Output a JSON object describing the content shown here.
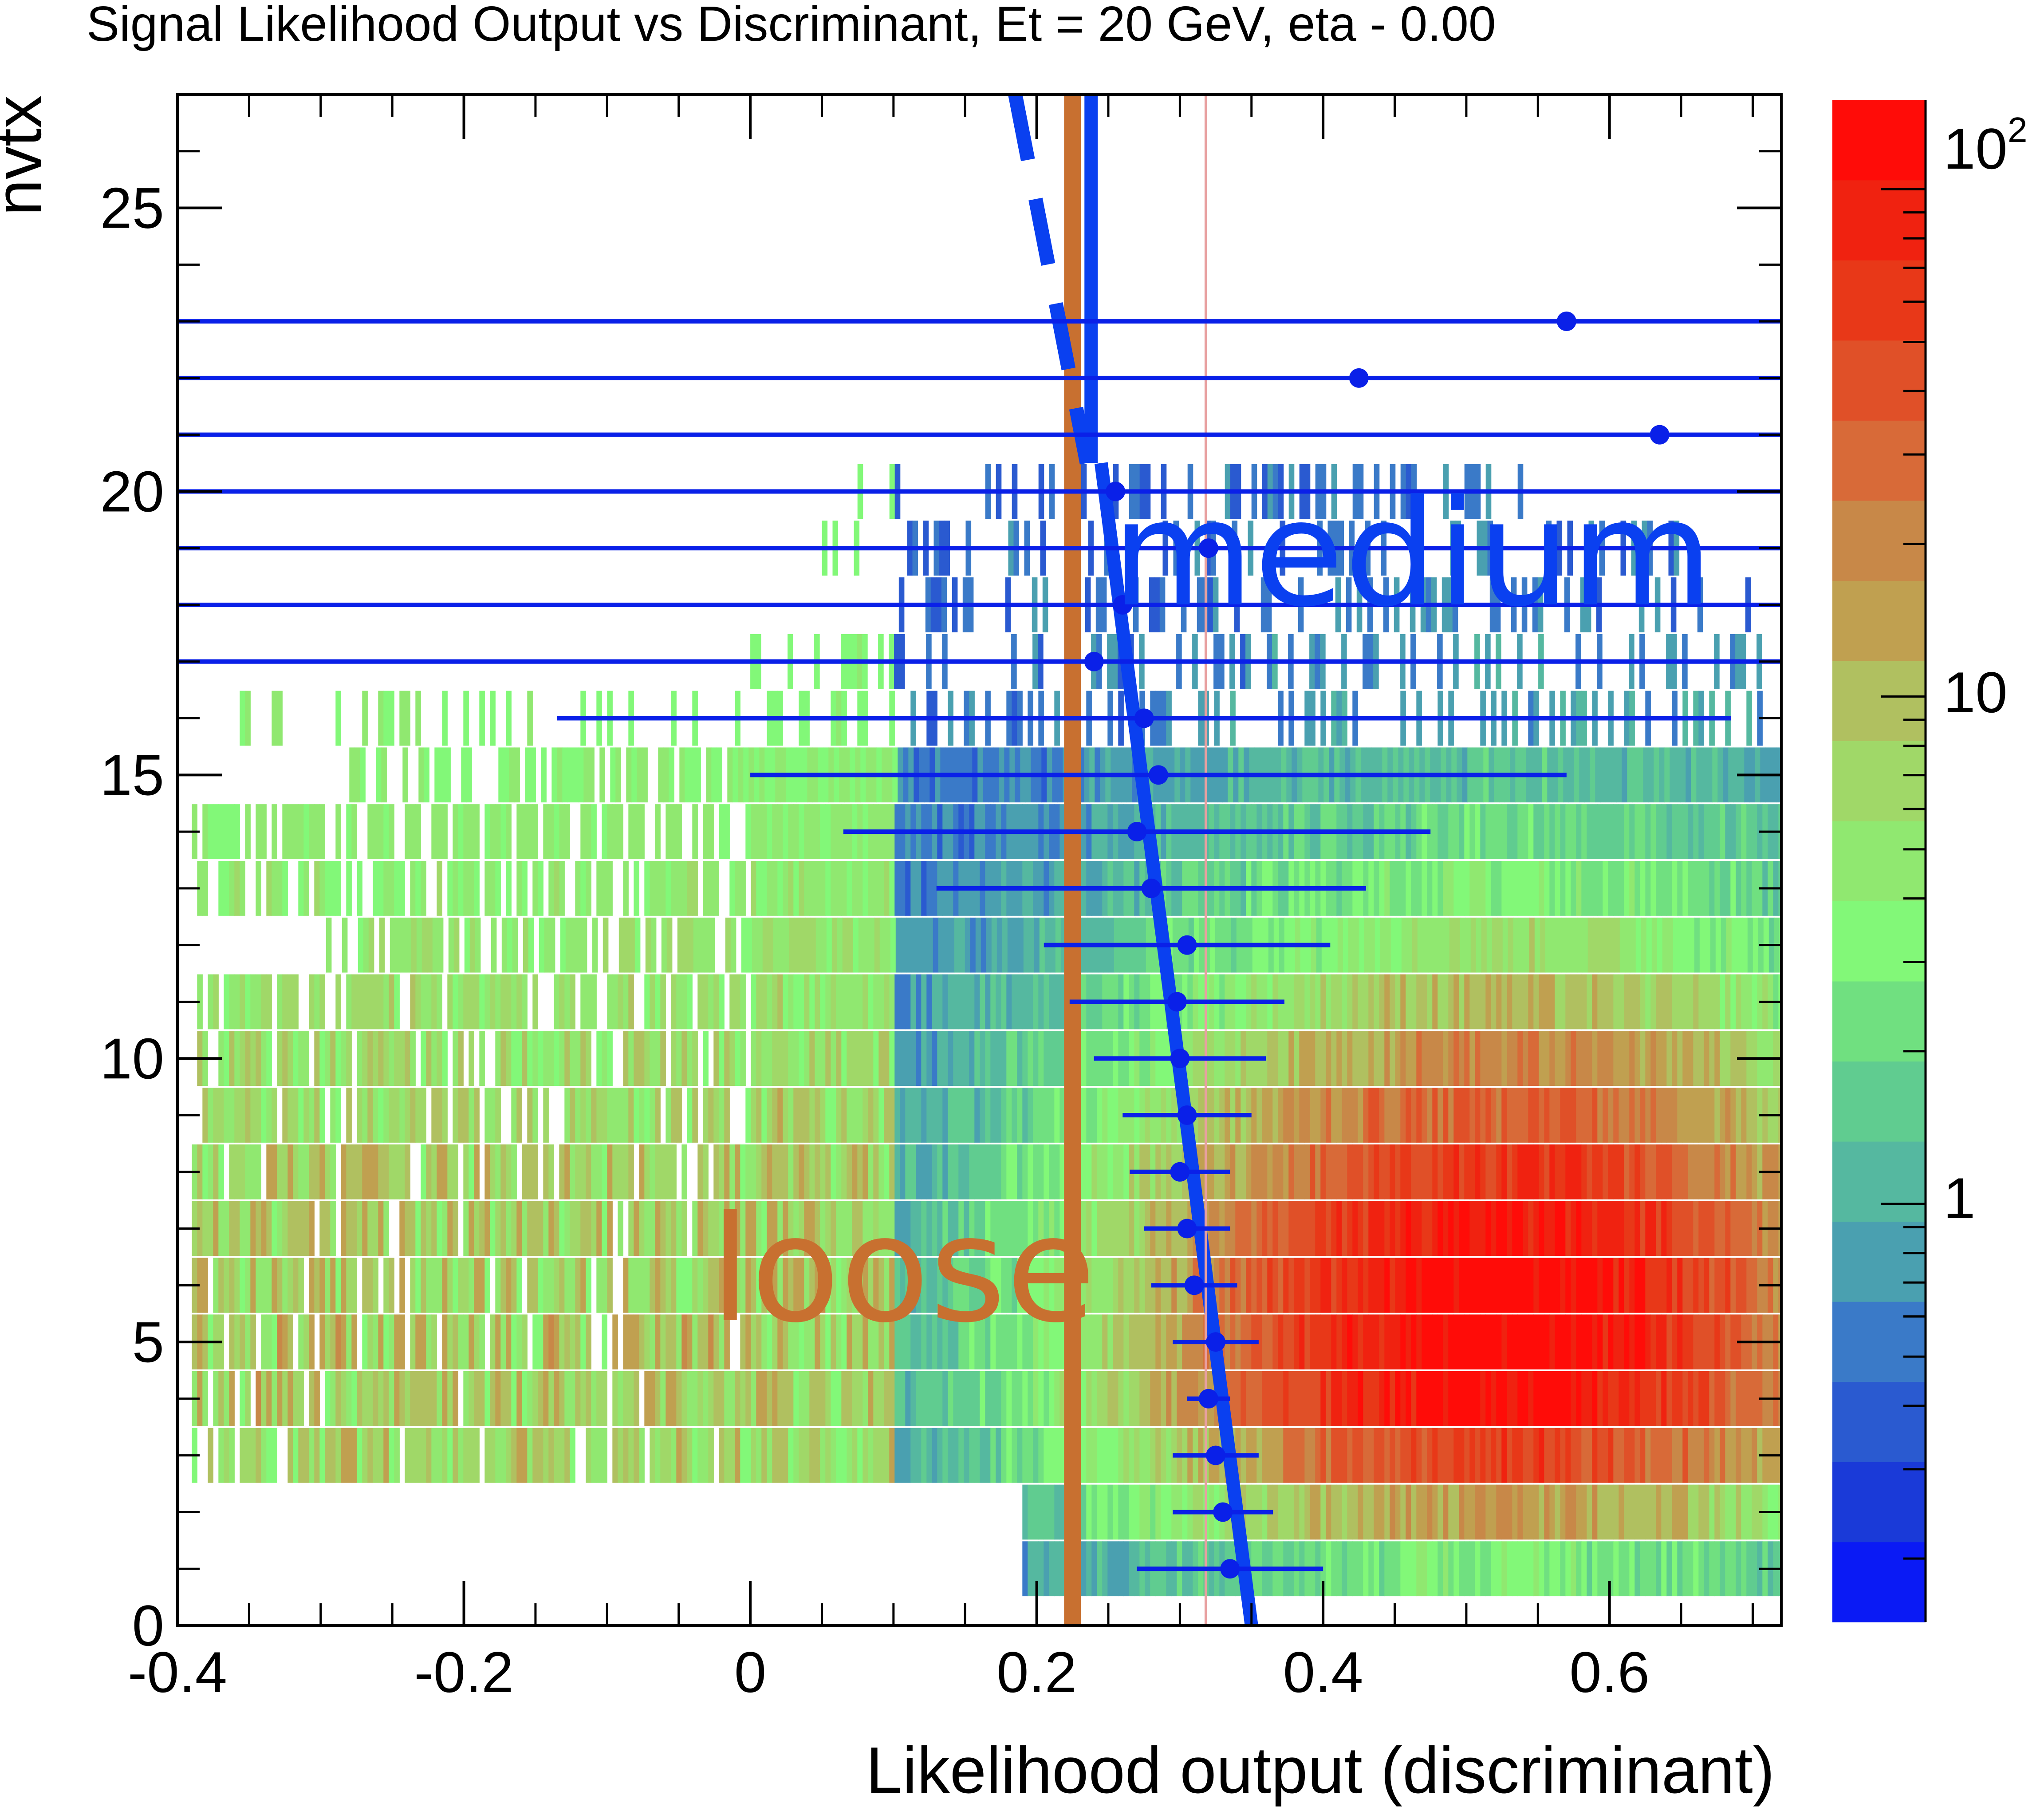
{
  "chart_data": {
    "type": "heatmap",
    "title": "Signal Likelihood Output vs Discriminant, Et = 20 GeV, eta - 0.00",
    "xlabel": "Likelihood output (discriminant)",
    "ylabel": "nvtx",
    "xlim": [
      -0.4,
      0.72
    ],
    "ylim": [
      0,
      27
    ],
    "x_tick_labels": [
      "-0.4",
      "-0.2",
      "0",
      "0.2",
      "0.4",
      "0.6"
    ],
    "x_ticks": [
      -0.4,
      -0.2,
      0,
      0.2,
      0.4,
      0.6
    ],
    "y_tick_labels": [
      "0",
      "5",
      "10",
      "15",
      "20",
      "25"
    ],
    "y_ticks": [
      0,
      5,
      10,
      15,
      20,
      25
    ],
    "z_scale": "log",
    "z_range": [
      0.15,
      150
    ],
    "z_tick_labels": [
      "1",
      "10",
      "10",
      "2"
    ],
    "z_ticks": [
      1,
      10,
      100
    ],
    "palette_colors": [
      "#0a1af5",
      "#1a3ad8",
      "#2a5ad0",
      "#3a7ac8",
      "#4aa0b0",
      "#55b8a0",
      "#60cc90",
      "#70e080",
      "#82f878",
      "#90e870",
      "#a0d868",
      "#b0c060",
      "#c0a050",
      "#c88848",
      "#d86a38",
      "#e05028",
      "#e83818",
      "#f02210",
      "#ff0c08"
    ],
    "heatmap_rows": [
      {
        "nvtx": 1,
        "x_range": [
          0.19,
          0.72
        ],
        "level": 0.25
      },
      {
        "nvtx": 2,
        "x_range": [
          0.19,
          0.72
        ],
        "level": 0.45
      },
      {
        "nvtx": 3,
        "x_range": [
          -0.39,
          0.72
        ],
        "level": 0.6
      },
      {
        "nvtx": 4,
        "x_range": [
          -0.39,
          0.72
        ],
        "level": 0.7
      },
      {
        "nvtx": 5,
        "x_range": [
          -0.39,
          0.72
        ],
        "level": 0.72
      },
      {
        "nvtx": 6,
        "x_range": [
          -0.39,
          0.72
        ],
        "level": 0.72
      },
      {
        "nvtx": 7,
        "x_range": [
          -0.39,
          0.72
        ],
        "level": 0.68
      },
      {
        "nvtx": 8,
        "x_range": [
          -0.39,
          0.72
        ],
        "level": 0.62
      },
      {
        "nvtx": 9,
        "x_range": [
          -0.39,
          0.72
        ],
        "level": 0.55
      },
      {
        "nvtx": 10,
        "x_range": [
          -0.39,
          0.72
        ],
        "level": 0.48
      },
      {
        "nvtx": 11,
        "x_range": [
          -0.39,
          0.72
        ],
        "level": 0.4
      },
      {
        "nvtx": 12,
        "x_range": [
          -0.3,
          0.72
        ],
        "level": 0.33
      },
      {
        "nvtx": 13,
        "x_range": [
          -0.39,
          0.72
        ],
        "level": 0.26
      },
      {
        "nvtx": 14,
        "x_range": [
          -0.39,
          0.72
        ],
        "level": 0.2
      },
      {
        "nvtx": 15,
        "x_range": [
          -0.28,
          0.72
        ],
        "level": 0.15
      },
      {
        "nvtx": 16,
        "x_range": [
          -0.39,
          0.72
        ],
        "level": 0.1
      },
      {
        "nvtx": 17,
        "x_range": [
          0,
          0.72
        ],
        "level": 0.08
      },
      {
        "nvtx": 18,
        "x_range": [
          0.1,
          0.7
        ],
        "level": 0.06
      },
      {
        "nvtx": 19,
        "x_range": [
          0.05,
          0.65
        ],
        "level": 0.05
      },
      {
        "nvtx": 20,
        "x_range": [
          0.06,
          0.55
        ],
        "level": 0.04
      }
    ],
    "profile_points": [
      {
        "nvtx": 1,
        "x": 0.335,
        "xerr_low": 0.065,
        "xerr_high": 0.065
      },
      {
        "nvtx": 2,
        "x": 0.33,
        "xerr_low": 0.035,
        "xerr_high": 0.035
      },
      {
        "nvtx": 3,
        "x": 0.325,
        "xerr_low": 0.03,
        "xerr_high": 0.03
      },
      {
        "nvtx": 4,
        "x": 0.32,
        "xerr_low": 0.015,
        "xerr_high": 0.015
      },
      {
        "nvtx": 5,
        "x": 0.325,
        "xerr_low": 0.03,
        "xerr_high": 0.03
      },
      {
        "nvtx": 6,
        "x": 0.31,
        "xerr_low": 0.03,
        "xerr_high": 0.03
      },
      {
        "nvtx": 7,
        "x": 0.305,
        "xerr_low": 0.03,
        "xerr_high": 0.03
      },
      {
        "nvtx": 8,
        "x": 0.3,
        "xerr_low": 0.035,
        "xerr_high": 0.035
      },
      {
        "nvtx": 9,
        "x": 0.305,
        "xerr_low": 0.045,
        "xerr_high": 0.045
      },
      {
        "nvtx": 10,
        "x": 0.3,
        "xerr_low": 0.06,
        "xerr_high": 0.06
      },
      {
        "nvtx": 11,
        "x": 0.298,
        "xerr_low": 0.075,
        "xerr_high": 0.075
      },
      {
        "nvtx": 12,
        "x": 0.305,
        "xerr_low": 0.1,
        "xerr_high": 0.1
      },
      {
        "nvtx": 13,
        "x": 0.28,
        "xerr_low": 0.15,
        "xerr_high": 0.15
      },
      {
        "nvtx": 14,
        "x": 0.27,
        "xerr_low": 0.205,
        "xerr_high": 0.205
      },
      {
        "nvtx": 15,
        "x": 0.285,
        "xerr_low": 0.285,
        "xerr_high": 0.285
      },
      {
        "nvtx": 16,
        "x": 0.275,
        "xerr_low": 0.41,
        "xerr_high": 0.41
      },
      {
        "nvtx": 17,
        "x": 0.24,
        "xerr_low": 0.64,
        "xerr_high": 0.64
      },
      {
        "nvtx": 18,
        "x": 0.26,
        "xerr_low": 0.66,
        "xerr_high": 0.66
      },
      {
        "nvtx": 19,
        "x": 0.32,
        "xerr_low": 0.72,
        "xerr_high": 0.72
      },
      {
        "nvtx": 20,
        "x": 0.255,
        "xerr_low": 0.655,
        "xerr_high": 0.655
      },
      {
        "nvtx": 21,
        "x": 0.635,
        "xerr_low": 1.035,
        "xerr_high": 0.085
      },
      {
        "nvtx": 22,
        "x": 0.425,
        "xerr_low": 0.825,
        "xerr_high": 0.295
      },
      {
        "nvtx": 23,
        "x": 0.57,
        "xerr_low": 0.97,
        "xerr_high": 0.15
      }
    ],
    "cut_lines": [
      {
        "name": "loose",
        "type": "vertical",
        "x": 0.225,
        "y_range": [
          0,
          27
        ],
        "color": "#c87030"
      },
      {
        "name": "medium-dashed",
        "type": "dashed",
        "points": [
          [
            0.185,
            27
          ],
          [
            0.235,
            20.5
          ]
        ],
        "color": "#0a40f0"
      },
      {
        "name": "medium-vertical",
        "type": "vertical",
        "x": 0.238,
        "y_range": [
          20.5,
          27
        ],
        "color": "#0a40f0"
      },
      {
        "name": "medium-fit",
        "type": "line",
        "points": [
          [
            0.245,
            20.5
          ],
          [
            0.35,
            0
          ]
        ],
        "color": "#0a40f0"
      },
      {
        "name": "reference",
        "type": "thin",
        "x": 0.318,
        "y_range": [
          0,
          27
        ],
        "color": "#e8a0a0"
      }
    ],
    "annotations": [
      {
        "text": "loose",
        "x": -0.02,
        "y": 6.2
      },
      {
        "text": "medium",
        "x": 0.25,
        "y": 18.6
      }
    ]
  }
}
